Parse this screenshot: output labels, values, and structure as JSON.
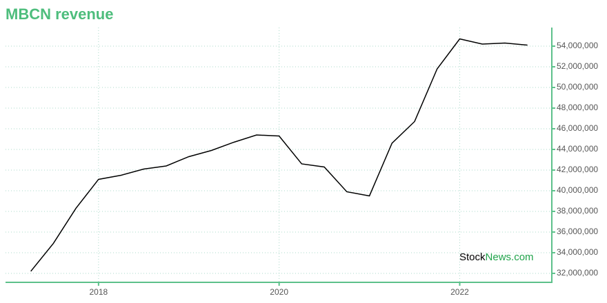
{
  "chart_data": {
    "type": "line",
    "title": "MBCN revenue",
    "x": [
      2017.25,
      2017.5,
      2017.75,
      2018,
      2018.25,
      2018.5,
      2018.75,
      2019,
      2019.25,
      2019.5,
      2019.75,
      2020,
      2020.25,
      2020.5,
      2020.75,
      2021,
      2021.25,
      2021.5,
      2021.75,
      2022,
      2022.25,
      2022.5,
      2022.75
    ],
    "series": [
      {
        "name": "MBCN revenue",
        "color": "#000000",
        "values": [
          32200000,
          34900000,
          38300000,
          41100000,
          41500000,
          42100000,
          42400000,
          43300000,
          43900000,
          44700000,
          45400000,
          45300000,
          42600000,
          42300000,
          39900000,
          39500000,
          44600000,
          46700000,
          51800000,
          54700000,
          54200000,
          54300000,
          54100000
        ]
      }
    ],
    "xlim": [
      2016.97,
      2023.02
    ],
    "xticks": [
      2018,
      2020,
      2022
    ],
    "ylim": [
      31130000,
      55800000
    ],
    "yticks": [
      {
        "value": 32000000,
        "label": "32,000,000"
      },
      {
        "value": 34000000,
        "label": "34,000,000"
      },
      {
        "value": 36000000,
        "label": "36,000,000"
      },
      {
        "value": 38000000,
        "label": "38,000,000"
      },
      {
        "value": 40000000,
        "label": "40,000,000"
      },
      {
        "value": 42000000,
        "label": "42,000,000"
      },
      {
        "value": 44000000,
        "label": "44,000,000"
      },
      {
        "value": 46000000,
        "label": "46,000,000"
      },
      {
        "value": 48000000,
        "label": "48,000,000"
      },
      {
        "value": 50000000,
        "label": "50,000,000"
      },
      {
        "value": 52000000,
        "label": "52,000,000"
      },
      {
        "value": 54000000,
        "label": "54,000,000"
      }
    ],
    "grid": true,
    "watermark": [
      "Stock",
      "News.com"
    ]
  }
}
